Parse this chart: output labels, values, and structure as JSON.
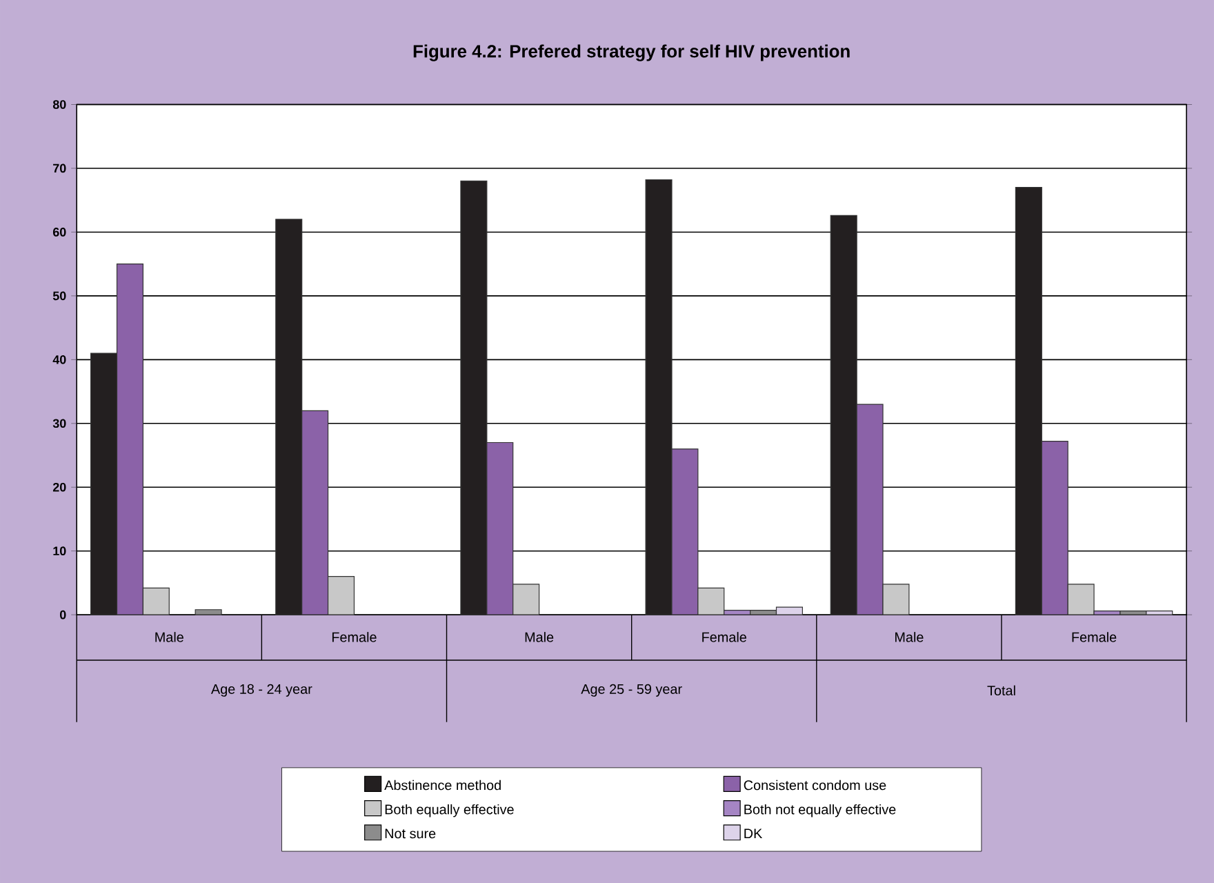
{
  "chart_data": {
    "type": "bar",
    "title": "Figure 4.2: Prefered strategy for self HIV prevention",
    "categories": [
      "Male",
      "Female",
      "Male",
      "Female",
      "Male",
      "Female"
    ],
    "annotations": [
      "Age 18 - 24 year",
      "Age 25 - 59 year",
      "Total"
    ],
    "series": [
      {
        "name": "Abstinence method",
        "color": "#231f20",
        "values": [
          41,
          62,
          68,
          68.2,
          62.6,
          67
        ]
      },
      {
        "name": "Consistent condom use",
        "color": "#8b62a8",
        "values": [
          55,
          32,
          27,
          26,
          33,
          27.2
        ]
      },
      {
        "name": "Both equally effective",
        "color": "#c8c8c8",
        "values": [
          4.2,
          6,
          4.8,
          4.2,
          4.8,
          4.8
        ]
      },
      {
        "name": "Both not equally effective",
        "color": "#a585c4",
        "values": [
          null,
          null,
          null,
          0.7,
          null,
          0.6
        ]
      },
      {
        "name": "Not sure",
        "color": "#8c8c8c",
        "values": [
          0.8,
          null,
          null,
          0.7,
          null,
          0.6
        ]
      },
      {
        "name": "DK",
        "color": "#ddd3ea",
        "values": [
          null,
          null,
          null,
          1.2,
          null,
          0.6
        ]
      }
    ],
    "ylim": [
      0,
      80
    ],
    "yticks": [
      0,
      10,
      20,
      30,
      40,
      50,
      60,
      70,
      80
    ],
    "grid": "y",
    "legend": "bottom"
  }
}
